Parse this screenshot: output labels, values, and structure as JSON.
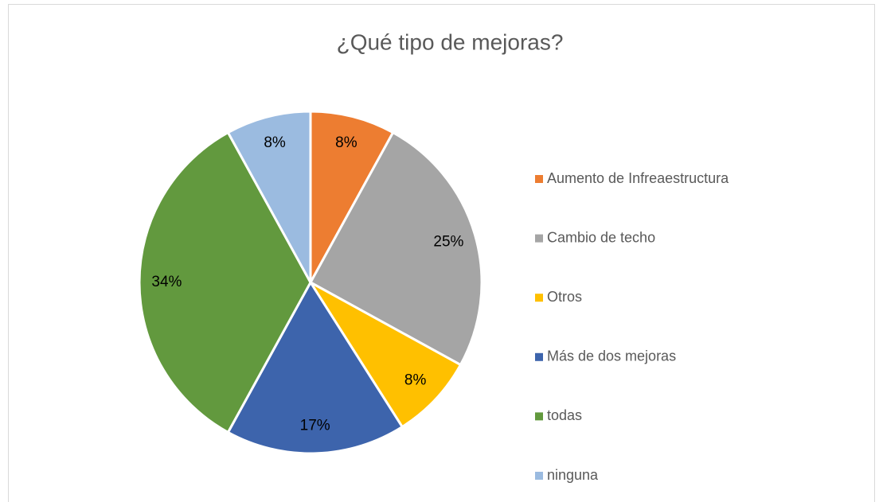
{
  "chart_data": {
    "type": "pie",
    "title": "¿Qué tipo de mejoras?",
    "categories": [
      "Aumento de Infreaestructura",
      "Cambio de techo",
      "Otros",
      "Más de dos mejoras",
      "todas",
      "ninguna"
    ],
    "values": [
      8,
      25,
      8,
      17,
      34,
      8
    ],
    "value_labels": [
      "8%",
      "25%",
      "8%",
      "17%",
      "34%",
      "8%"
    ],
    "colors": [
      "#ED7D31",
      "#A5A5A5",
      "#FFC000",
      "#3D64AC",
      "#62993E",
      "#9BBBE0"
    ],
    "legend": "right"
  }
}
